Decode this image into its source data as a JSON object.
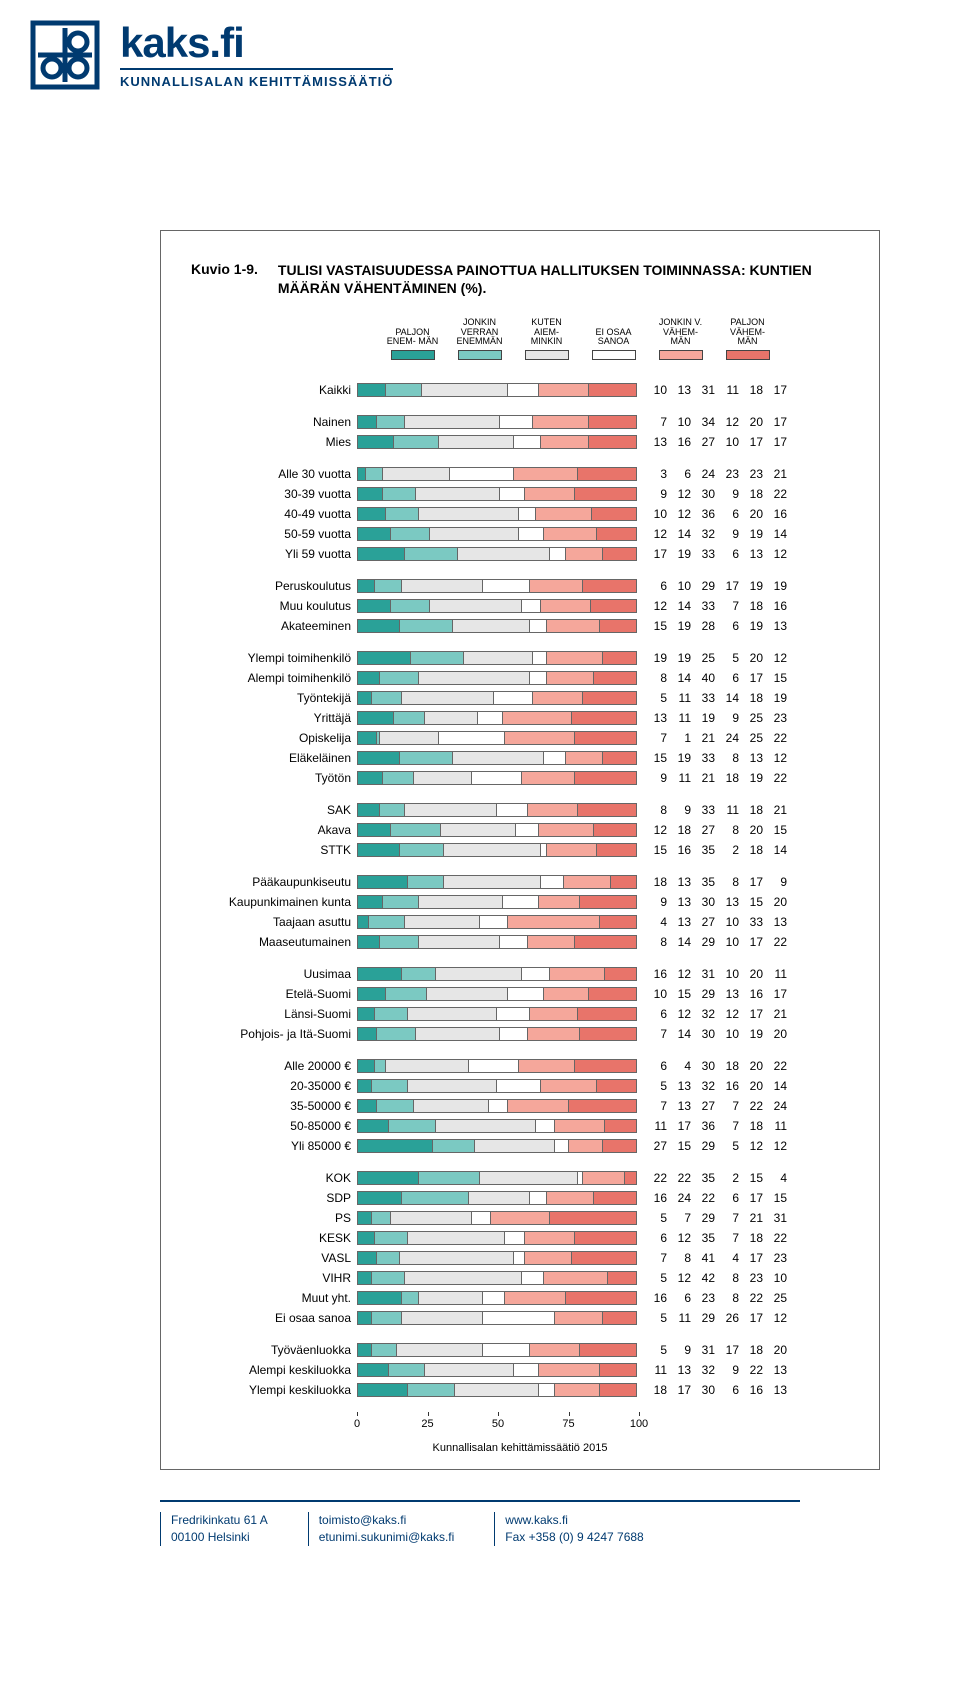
{
  "logo": {
    "main": "kaks.fi",
    "sub": "KUNNALLISALAN KEHITTÄMISSÄÄTIÖ"
  },
  "chart": {
    "kuvio_label": "Kuvio 1-9.",
    "title": "TULISI VASTAISUUDESSA PAINOTTUA HALLITUKSEN TOIMINNASSA: KUNTIEN MÄÄRÄN VÄHENTÄMINEN (%).",
    "colors": [
      "#2aa198",
      "#7bc9c2",
      "#e6e6e6",
      "#ffffff",
      "#f5a79b",
      "#e8746a"
    ],
    "border_color": "#555555",
    "text_color": "#000000",
    "legend": [
      "PALJON ENEM- MÄN",
      "JONKIN VERRAN ENEMMÄN",
      "KUTEN AIEM- MINKIN",
      "EI OSAA SANOA",
      "JONKIN V. VÄHEM- MÄN",
      "PALJON VÄHEM- MÄN"
    ],
    "axis": {
      "min": 0,
      "max": 100,
      "ticks": [
        0,
        25,
        50,
        75,
        100
      ]
    },
    "groups": [
      {
        "rows": [
          {
            "label": "Kaikki",
            "v": [
              10,
              13,
              31,
              11,
              18,
              17
            ]
          }
        ]
      },
      {
        "rows": [
          {
            "label": "Nainen",
            "v": [
              7,
              10,
              34,
              12,
              20,
              17
            ]
          },
          {
            "label": "Mies",
            "v": [
              13,
              16,
              27,
              10,
              17,
              17
            ]
          }
        ]
      },
      {
        "rows": [
          {
            "label": "Alle 30 vuotta",
            "v": [
              3,
              6,
              24,
              23,
              23,
              21
            ]
          },
          {
            "label": "30-39 vuotta",
            "v": [
              9,
              12,
              30,
              9,
              18,
              22
            ]
          },
          {
            "label": "40-49 vuotta",
            "v": [
              10,
              12,
              36,
              6,
              20,
              16
            ]
          },
          {
            "label": "50-59 vuotta",
            "v": [
              12,
              14,
              32,
              9,
              19,
              14
            ]
          },
          {
            "label": "Yli 59 vuotta",
            "v": [
              17,
              19,
              33,
              6,
              13,
              12
            ]
          }
        ]
      },
      {
        "rows": [
          {
            "label": "Peruskoulutus",
            "v": [
              6,
              10,
              29,
              17,
              19,
              19
            ]
          },
          {
            "label": "Muu koulutus",
            "v": [
              12,
              14,
              33,
              7,
              18,
              16
            ]
          },
          {
            "label": "Akateeminen",
            "v": [
              15,
              19,
              28,
              6,
              19,
              13
            ]
          }
        ]
      },
      {
        "rows": [
          {
            "label": "Ylempi toimihenkilö",
            "v": [
              19,
              19,
              25,
              5,
              20,
              12
            ]
          },
          {
            "label": "Alempi toimihenkilö",
            "v": [
              8,
              14,
              40,
              6,
              17,
              15
            ]
          },
          {
            "label": "Työntekijä",
            "v": [
              5,
              11,
              33,
              14,
              18,
              19
            ]
          },
          {
            "label": "Yrittäjä",
            "v": [
              13,
              11,
              19,
              9,
              25,
              23
            ]
          },
          {
            "label": "Opiskelija",
            "v": [
              7,
              1,
              21,
              24,
              25,
              22
            ]
          },
          {
            "label": "Eläkeläinen",
            "v": [
              15,
              19,
              33,
              8,
              13,
              12
            ]
          },
          {
            "label": "Työtön",
            "v": [
              9,
              11,
              21,
              18,
              19,
              22
            ]
          }
        ]
      },
      {
        "rows": [
          {
            "label": "SAK",
            "v": [
              8,
              9,
              33,
              11,
              18,
              21
            ]
          },
          {
            "label": "Akava",
            "v": [
              12,
              18,
              27,
              8,
              20,
              15
            ]
          },
          {
            "label": "STTK",
            "v": [
              15,
              16,
              35,
              2,
              18,
              14
            ]
          }
        ]
      },
      {
        "rows": [
          {
            "label": "Pääkaupunkiseutu",
            "v": [
              18,
              13,
              35,
              8,
              17,
              9
            ]
          },
          {
            "label": "Kaupunkimainen kunta",
            "v": [
              9,
              13,
              30,
              13,
              15,
              20
            ]
          },
          {
            "label": "Taajaan asuttu",
            "v": [
              4,
              13,
              27,
              10,
              33,
              13
            ]
          },
          {
            "label": "Maaseutumainen",
            "v": [
              8,
              14,
              29,
              10,
              17,
              22
            ]
          }
        ]
      },
      {
        "rows": [
          {
            "label": "Uusimaa",
            "v": [
              16,
              12,
              31,
              10,
              20,
              11
            ]
          },
          {
            "label": "Etelä-Suomi",
            "v": [
              10,
              15,
              29,
              13,
              16,
              17
            ]
          },
          {
            "label": "Länsi-Suomi",
            "v": [
              6,
              12,
              32,
              12,
              17,
              21
            ]
          },
          {
            "label": "Pohjois- ja Itä-Suomi",
            "v": [
              7,
              14,
              30,
              10,
              19,
              20
            ]
          }
        ]
      },
      {
        "rows": [
          {
            "label": "Alle 20000 €",
            "v": [
              6,
              4,
              30,
              18,
              20,
              22
            ]
          },
          {
            "label": "20-35000 €",
            "v": [
              5,
              13,
              32,
              16,
              20,
              14
            ]
          },
          {
            "label": "35-50000 €",
            "v": [
              7,
              13,
              27,
              7,
              22,
              24
            ]
          },
          {
            "label": "50-85000 €",
            "v": [
              11,
              17,
              36,
              7,
              18,
              11
            ]
          },
          {
            "label": "Yli 85000 €",
            "v": [
              27,
              15,
              29,
              5,
              12,
              12
            ]
          }
        ]
      },
      {
        "rows": [
          {
            "label": "KOK",
            "v": [
              22,
              22,
              35,
              2,
              15,
              4
            ]
          },
          {
            "label": "SDP",
            "v": [
              16,
              24,
              22,
              6,
              17,
              15
            ]
          },
          {
            "label": "PS",
            "v": [
              5,
              7,
              29,
              7,
              21,
              31
            ]
          },
          {
            "label": "KESK",
            "v": [
              6,
              12,
              35,
              7,
              18,
              22
            ]
          },
          {
            "label": "VASL",
            "v": [
              7,
              8,
              41,
              4,
              17,
              23
            ]
          },
          {
            "label": "VIHR",
            "v": [
              5,
              12,
              42,
              8,
              23,
              10
            ]
          },
          {
            "label": "Muut yht.",
            "v": [
              16,
              6,
              23,
              8,
              22,
              25
            ]
          },
          {
            "label": "Ei osaa sanoa",
            "v": [
              5,
              11,
              29,
              26,
              17,
              12
            ]
          }
        ]
      },
      {
        "rows": [
          {
            "label": "Työväenluokka",
            "v": [
              5,
              9,
              31,
              17,
              18,
              20
            ]
          },
          {
            "label": "Alempi keskiluokka",
            "v": [
              11,
              13,
              32,
              9,
              22,
              13
            ]
          },
          {
            "label": "Ylempi keskiluokka",
            "v": [
              18,
              17,
              30,
              6,
              16,
              13
            ]
          }
        ]
      }
    ],
    "footer_note": "Kunnallisalan kehittämissäätiö 2015"
  },
  "footer": {
    "col1": {
      "l1": "Fredrikinkatu 61 A",
      "l2": "00100 Helsinki"
    },
    "col2": {
      "l1": "toimisto@kaks.fi",
      "l2": "etunimi.sukunimi@kaks.fi"
    },
    "col3": {
      "l1": "www.kaks.fi",
      "l2": "Fax +358 (0) 9 4247 7688"
    }
  }
}
